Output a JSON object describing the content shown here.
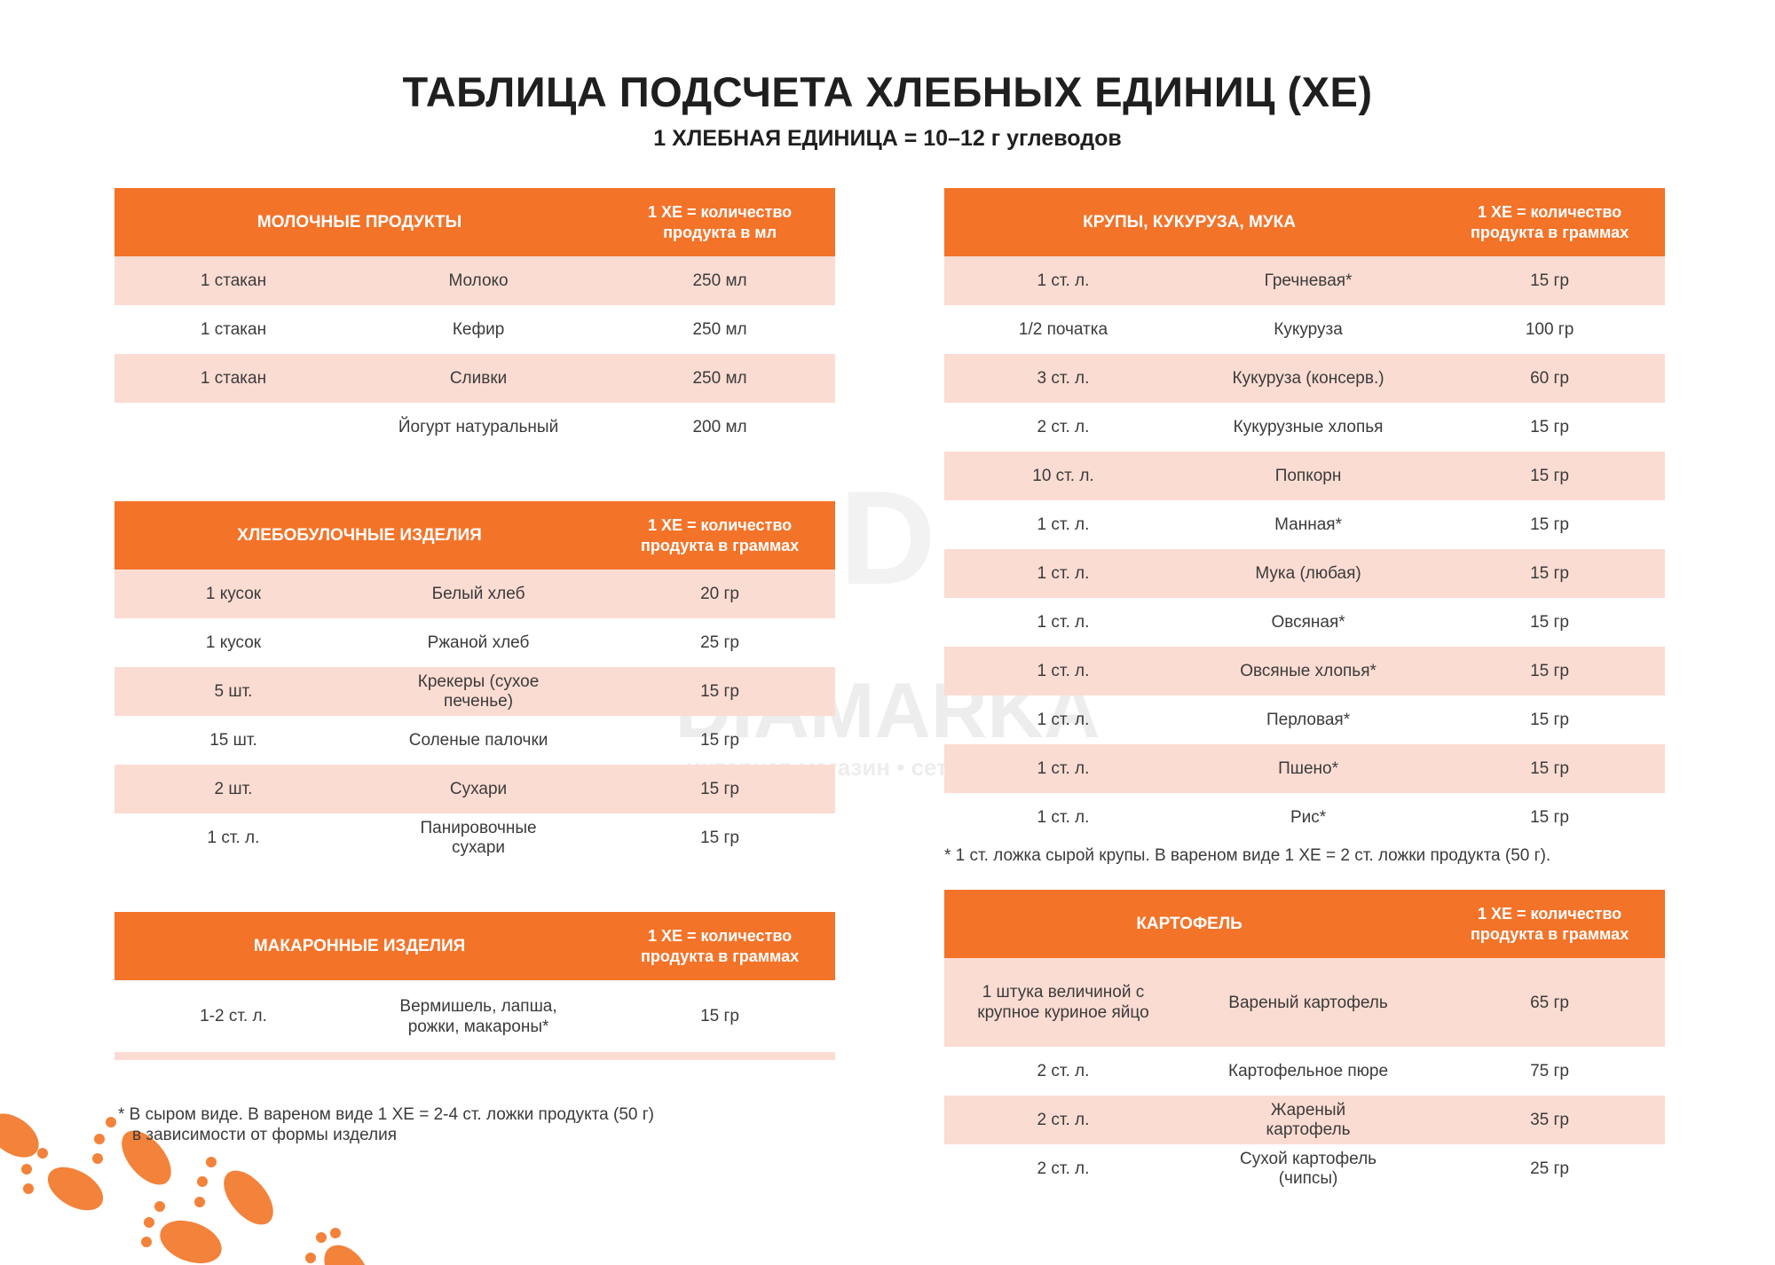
{
  "title": "ТАБЛИЦА ПОДСЧЕТА ХЛЕБНЫХ ЕДИНИЦ (ХЕ)",
  "subtitle": "1 ХЛЕБНАЯ ЕДИНИЦА = 10–12 г углеводов",
  "watermark": {
    "brand": "DIAMARKA",
    "tagline": "интернет-магазин • сеть магазинов"
  },
  "colors": {
    "header": "#f37329",
    "row_alt": "#fbdcd3"
  },
  "dairy": {
    "title": "МОЛОЧНЫЕ ПРОДУКТЫ",
    "unit": "1 ХЕ = количество продукта в мл",
    "rows": [
      [
        "1 стакан",
        "Молоко",
        "250 мл"
      ],
      [
        "1 стакан",
        "Кефир",
        "250 мл"
      ],
      [
        "1 стакан",
        "Сливки",
        "250 мл"
      ],
      [
        "",
        "Йогурт натуральный",
        "200 мл"
      ]
    ]
  },
  "bread": {
    "title": "ХЛЕБОБУЛОЧНЫЕ ИЗДЕЛИЯ",
    "unit": "1 ХЕ = количество продукта в граммах",
    "rows": [
      [
        "1 кусок",
        "Белый хлеб",
        "20 гр"
      ],
      [
        "1 кусок",
        "Ржаной хлеб",
        "25 гр"
      ],
      [
        "5 шт.",
        "Крекеры (сухое печенье)",
        "15 гр"
      ],
      [
        "15 шт.",
        "Соленые палочки",
        "15 гр"
      ],
      [
        "2 шт.",
        "Сухари",
        "15 гр"
      ],
      [
        "1 ст. л.",
        "Панировочные сухари",
        "15 гр"
      ]
    ]
  },
  "pasta": {
    "title": "МАКАРОННЫЕ ИЗДЕЛИЯ",
    "unit": "1 ХЕ = количество продукта в граммах",
    "rows": [
      [
        "1-2 ст. л.",
        "Вермишель, лапша, рожки, макароны*",
        "15 гр"
      ]
    ],
    "note": "* В сыром виде. В вареном виде 1 ХЕ = 2-4 ст. ложки продукта (50 г)",
    "note2": "в зависимости от формы изделия"
  },
  "cereals": {
    "title": "КРУПЫ, КУКУРУЗА, МУКА",
    "unit": "1 ХЕ = количество продукта в граммах",
    "rows": [
      [
        "1 ст. л.",
        "Гречневая*",
        "15  гр"
      ],
      [
        "1/2 початка",
        "Кукуруза",
        "100 гр"
      ],
      [
        "3 ст. л.",
        "Кукуруза (консерв.)",
        "60 гр"
      ],
      [
        "2 ст. л.",
        "Кукурузные хлопья",
        "15 гр"
      ],
      [
        "10 ст. л.",
        "Попкорн",
        "15 гр"
      ],
      [
        "1 ст. л.",
        "Манная*",
        "15 гр"
      ],
      [
        "1 ст. л.",
        "Мука (любая)",
        "15 гр"
      ],
      [
        "1 ст. л.",
        "Овсяная*",
        "15 гр"
      ],
      [
        "1 ст. л.",
        "Овсяные хлопья*",
        "15 гр"
      ],
      [
        "1 ст. л.",
        "Перловая*",
        "15 гр"
      ],
      [
        "1 ст. л.",
        "Пшено*",
        "15 гр"
      ],
      [
        "1 ст. л.",
        "Рис*",
        "15 гр"
      ]
    ],
    "note": "* 1 ст. ложка сырой крупы. В вареном виде 1 ХЕ = 2 ст. ложки продукта (50 г)."
  },
  "potato": {
    "title": "КАРТОФЕЛЬ",
    "unit": "1 ХЕ = количество продукта в граммах",
    "rows": [
      [
        "1 штука величиной с крупное куриное яйцо",
        "Вареный картофель",
        "65 гр"
      ],
      [
        "2 ст. л.",
        "Картофельное пюре",
        "75 гр"
      ],
      [
        "2 ст. л.",
        "Жареный картофель",
        "35 гр"
      ],
      [
        "2 ст. л.",
        "Сухой картофель (чипсы)",
        "25 гр"
      ]
    ]
  }
}
